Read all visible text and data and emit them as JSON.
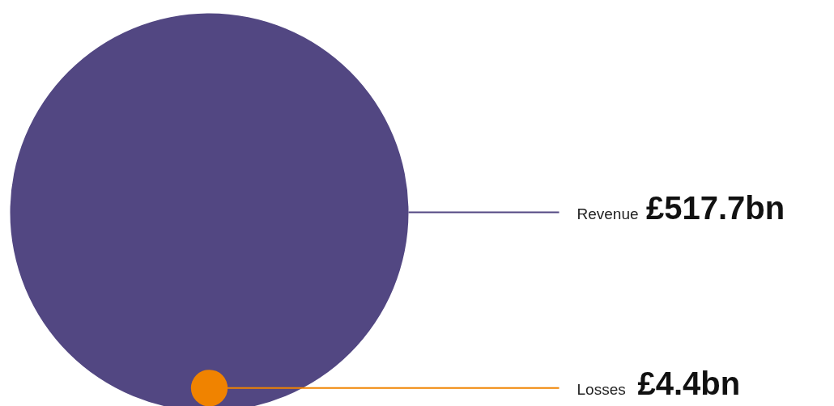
{
  "chart_data": {
    "type": "other",
    "categories": [
      "Revenue",
      "Losses"
    ],
    "values": [
      517.7,
      4.4
    ],
    "colors": [
      "#524782",
      "#f08300"
    ],
    "value_labels": [
      "£517.7bn",
      "£4.4bn"
    ]
  }
}
